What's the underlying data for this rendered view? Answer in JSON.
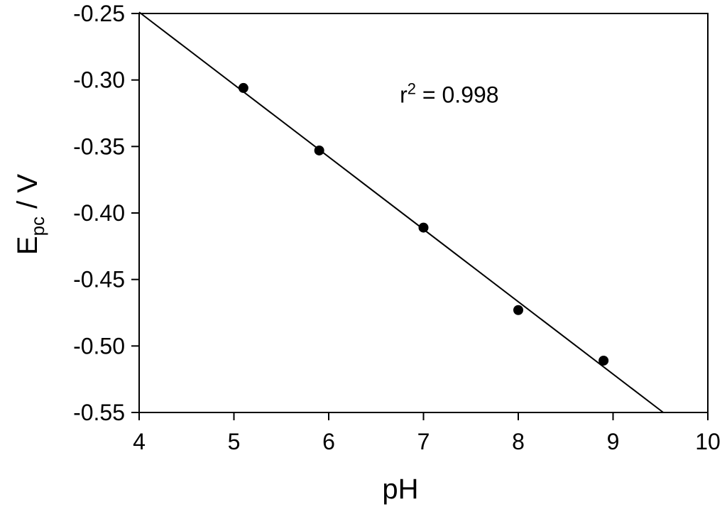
{
  "chart_data": {
    "type": "scatter",
    "xlabel": "pH",
    "ylabel": {
      "main": "E",
      "subscript": "pc",
      "suffix": " / V"
    },
    "xlim": [
      4,
      10
    ],
    "ylim": [
      -0.55,
      -0.25
    ],
    "x_ticks": [
      "4",
      "5",
      "6",
      "7",
      "8",
      "9",
      "10"
    ],
    "y_ticks": [
      "-0.25",
      "-0.30",
      "-0.35",
      "-0.40",
      "-0.45",
      "-0.50",
      "-0.55"
    ],
    "grid": false,
    "series": [
      {
        "x": [
          5.1,
          5.9,
          7.0,
          8.0,
          8.9
        ],
        "y": [
          -0.306,
          -0.353,
          -0.411,
          -0.473,
          -0.511
        ],
        "marker": "filled-circle",
        "color": "#000000"
      }
    ],
    "fit_line": {
      "x": [
        4.0,
        9.53
      ],
      "y": [
        -0.249,
        -0.55
      ],
      "color": "#000000"
    },
    "annotation": {
      "base": "r",
      "superscript": "2",
      "rest": " = 0.998",
      "x": 6.75,
      "y": -0.317
    }
  }
}
